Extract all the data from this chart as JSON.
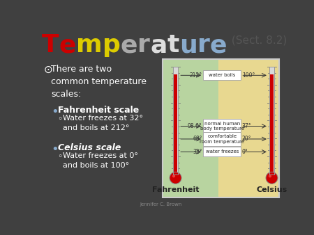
{
  "bg_color": "#404040",
  "title_parts": [
    {
      "text": "T",
      "color": "#cc0000"
    },
    {
      "text": "e",
      "color": "#cc0000"
    },
    {
      "text": "m",
      "color": "#ddcc00"
    },
    {
      "text": "p",
      "color": "#ddcc00"
    },
    {
      "text": "e",
      "color": "#aaaaaa"
    },
    {
      "text": "r",
      "color": "#aaaaaa"
    },
    {
      "text": "a",
      "color": "#dddddd"
    },
    {
      "text": "t",
      "color": "#dddddd"
    },
    {
      "text": "u",
      "color": "#88aacc"
    },
    {
      "text": "r",
      "color": "#88aacc"
    },
    {
      "text": "e",
      "color": "#88aacc"
    }
  ],
  "title_suffix": " (Sect. 8.2)",
  "bullet_main": "There are two\ncommon temperature\nscales:",
  "bullet1_head": "Fahrenheit scale",
  "bullet1_sub": "Water freezes at 32°\nand boils at 212°",
  "bullet2_head": "Celsius scale",
  "bullet2_sub": "Water freezes at 0°\nand boils at 100°",
  "footer": "Jennifer C. Brown",
  "thermo_bg_green": "#b8d4a0",
  "thermo_bg_yellow": "#e8d890",
  "thermo_fill_color": "#cc0000",
  "thermo_bulb_color": "#cc0000",
  "box_labels": [
    "water boils",
    "normal human\nbody temperature",
    "comfortable\nroom temperature",
    "water freezes"
  ],
  "fahrenheit_labels": [
    "212°",
    "98.6°",
    "68°",
    "32°"
  ],
  "celsius_labels": [
    "100°",
    "37°",
    "20°",
    "0°"
  ],
  "thermo_label_f": "Fahrenheit",
  "thermo_label_c": "Celsius",
  "title_fontsize": 26,
  "suffix_fontsize": 11,
  "main_bullet_fontsize": 9,
  "sub1_fontsize": 9,
  "sub2_fontsize": 8
}
